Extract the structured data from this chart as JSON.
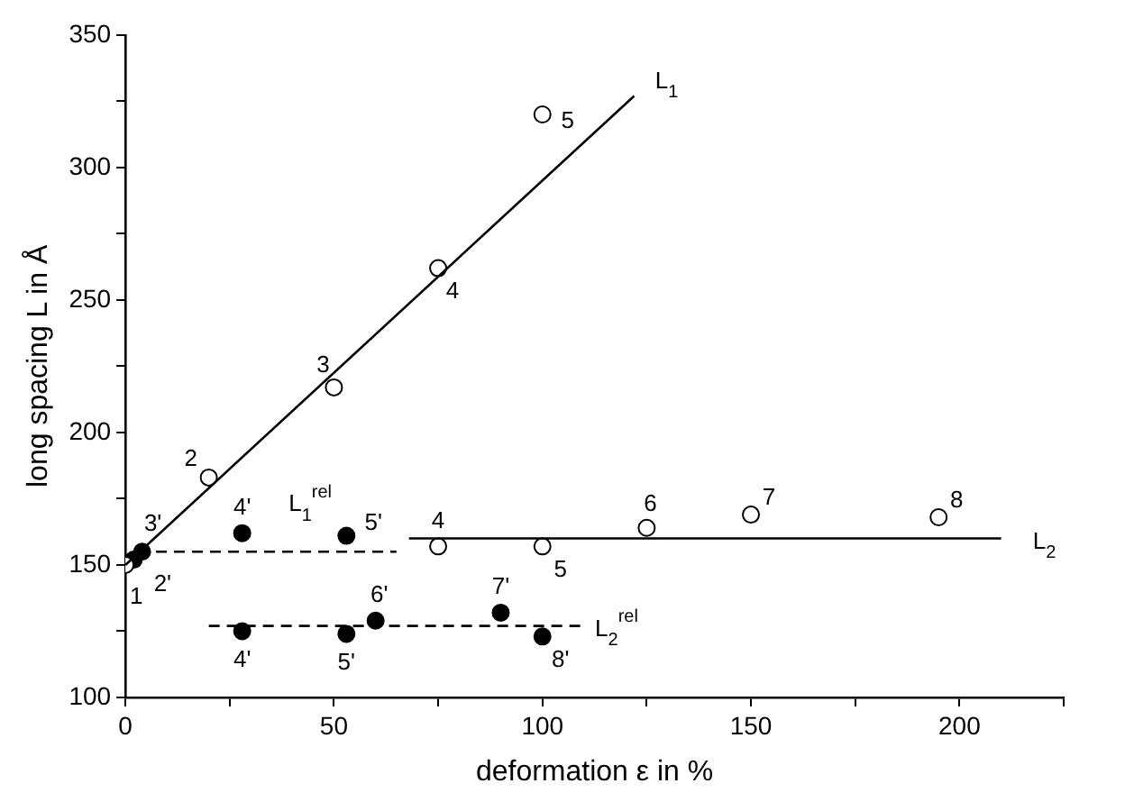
{
  "chart_data": {
    "type": "scatter",
    "xlabel": "deformation ε in %",
    "ylabel": "long spacing L in Å",
    "xlim": [
      0,
      225
    ],
    "ylim": [
      100,
      350
    ],
    "xticks": [
      0,
      {
        "value": 25,
        "label": null
      },
      50,
      {
        "value": 75,
        "label": null
      },
      100,
      {
        "value": 125,
        "label": null
      },
      150,
      {
        "value": 175,
        "label": null
      },
      200,
      {
        "value": 225,
        "label": null
      }
    ],
    "yticks": [
      100,
      {
        "value": 125,
        "label": null
      },
      150,
      {
        "value": 175,
        "label": null
      },
      200,
      {
        "value": 225,
        "label": null
      },
      250,
      {
        "value": 275,
        "label": null
      },
      300,
      {
        "value": 325,
        "label": null
      },
      350
    ],
    "grid": false,
    "legend": false,
    "marker": "circle",
    "series": [
      {
        "type": "line",
        "color": "#000000",
        "x": [
          0,
          122
        ],
        "values": [
          150,
          327
        ],
        "marker": "none",
        "line_style": "solid"
      },
      {
        "type": "line",
        "color": "#000000",
        "x": [
          3,
          65
        ],
        "values": [
          155,
          155
        ],
        "marker": "none",
        "line_style": "dashed"
      },
      {
        "type": "line",
        "color": "#000000",
        "x": [
          68,
          210
        ],
        "values": [
          160,
          160
        ],
        "marker": "none",
        "line_style": "solid"
      },
      {
        "type": "line",
        "color": "#000000",
        "x": [
          20,
          110
        ],
        "values": [
          127,
          127
        ],
        "marker": "none",
        "line_style": "dashed"
      },
      {
        "type": "scatter",
        "color": "#ffffff",
        "x": [
          0,
          20,
          50,
          75,
          100
        ],
        "values": [
          150,
          183,
          217,
          262,
          320
        ]
      },
      {
        "type": "scatter",
        "color": "#ffffff",
        "x": [
          75,
          100,
          125,
          150,
          195
        ],
        "values": [
          157,
          157,
          164,
          169,
          168
        ]
      },
      {
        "type": "scatter",
        "color": "#000000",
        "x": [
          2,
          4,
          28,
          53
        ],
        "values": [
          152,
          155,
          162,
          161
        ]
      },
      {
        "type": "scatter",
        "color": "#000000",
        "x": [
          28,
          53,
          60,
          90,
          100
        ],
        "values": [
          125,
          124,
          129,
          132,
          123
        ]
      }
    ],
    "annotations": [
      {
        "text": "1",
        "x": 0,
        "y": 150
      },
      {
        "text": "2",
        "x": 20,
        "y": 183
      },
      {
        "text": "3",
        "x": 50,
        "y": 217
      },
      {
        "text": "4",
        "x": 75,
        "y": 262
      },
      {
        "text": "5",
        "x": 100,
        "y": 320
      },
      {
        "text": "4",
        "x": 75,
        "y": 157
      },
      {
        "text": "5",
        "x": 100,
        "y": 157
      },
      {
        "text": "6",
        "x": 125,
        "y": 164
      },
      {
        "text": "7",
        "x": 150,
        "y": 169
      },
      {
        "text": "8",
        "x": 195,
        "y": 168
      },
      {
        "text": "2'",
        "x": 2,
        "y": 152
      },
      {
        "text": "3'",
        "x": 4,
        "y": 155
      },
      {
        "text": "4'",
        "x": 28,
        "y": 162
      },
      {
        "text": "5'",
        "x": 53,
        "y": 161
      },
      {
        "text": "4'",
        "x": 28,
        "y": 125
      },
      {
        "text": "5'",
        "x": 53,
        "y": 124
      },
      {
        "text": "6'",
        "x": 60,
        "y": 129
      },
      {
        "text": "7'",
        "x": 90,
        "y": 132
      },
      {
        "text": "8'",
        "x": 100,
        "y": 123
      },
      {
        "text": "L$_{1}$",
        "x": 122,
        "y": 327
      },
      {
        "text": "L$_{1}$$^{rel}$",
        "x": 40,
        "y": 155
      },
      {
        "text": "L$_{2}$",
        "x": 210,
        "y": 160
      },
      {
        "text": "L$_{2}$$^{rel}$",
        "x": 110,
        "y": 127
      }
    ]
  }
}
